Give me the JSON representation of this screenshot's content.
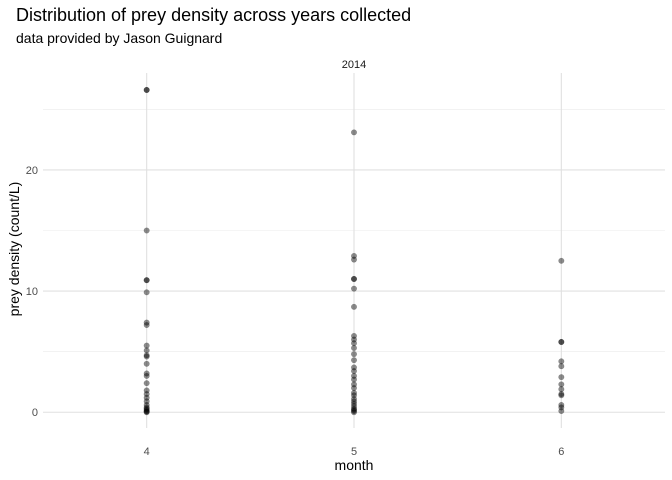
{
  "chart_data": {
    "type": "scatter",
    "title": "Distribution of prey density across years collected",
    "subtitle": "data provided by Jason Guignard",
    "facet_label": "2014",
    "xlabel": "month",
    "ylabel": "prey density (count/L)",
    "x_ticks": [
      4,
      5,
      6
    ],
    "y_ticks": [
      0,
      10,
      20
    ],
    "xlim": [
      3.5,
      6.5
    ],
    "ylim": [
      -1.3,
      28
    ],
    "grid": true,
    "point_color": "#000000",
    "point_opacity": 0.45,
    "points": [
      {
        "x": 4,
        "y": 26.6
      },
      {
        "x": 4,
        "y": 26.6
      },
      {
        "x": 4,
        "y": 15.0
      },
      {
        "x": 4,
        "y": 10.9
      },
      {
        "x": 4,
        "y": 10.9
      },
      {
        "x": 4,
        "y": 9.9
      },
      {
        "x": 4,
        "y": 7.4
      },
      {
        "x": 4,
        "y": 7.2
      },
      {
        "x": 4,
        "y": 5.5
      },
      {
        "x": 4,
        "y": 5.1
      },
      {
        "x": 4,
        "y": 4.7
      },
      {
        "x": 4,
        "y": 4.6
      },
      {
        "x": 4,
        "y": 4.0
      },
      {
        "x": 4,
        "y": 3.2
      },
      {
        "x": 4,
        "y": 3.0
      },
      {
        "x": 4,
        "y": 2.4
      },
      {
        "x": 4,
        "y": 1.8
      },
      {
        "x": 4,
        "y": 1.5
      },
      {
        "x": 4,
        "y": 1.2
      },
      {
        "x": 4,
        "y": 0.9
      },
      {
        "x": 4,
        "y": 0.6
      },
      {
        "x": 4,
        "y": 0.4
      },
      {
        "x": 4,
        "y": 0.3
      },
      {
        "x": 4,
        "y": 0.2
      },
      {
        "x": 4,
        "y": 0.1
      },
      {
        "x": 4,
        "y": 0.05
      },
      {
        "x": 4,
        "y": 0.0
      },
      {
        "x": 5,
        "y": 23.1
      },
      {
        "x": 5,
        "y": 12.9
      },
      {
        "x": 5,
        "y": 12.6
      },
      {
        "x": 5,
        "y": 11.0
      },
      {
        "x": 5,
        "y": 11.0
      },
      {
        "x": 5,
        "y": 10.2
      },
      {
        "x": 5,
        "y": 8.7
      },
      {
        "x": 5,
        "y": 6.3
      },
      {
        "x": 5,
        "y": 6.0
      },
      {
        "x": 5,
        "y": 5.7
      },
      {
        "x": 5,
        "y": 5.3
      },
      {
        "x": 5,
        "y": 4.8
      },
      {
        "x": 5,
        "y": 4.3
      },
      {
        "x": 5,
        "y": 3.7
      },
      {
        "x": 5,
        "y": 3.4
      },
      {
        "x": 5,
        "y": 3.0
      },
      {
        "x": 5,
        "y": 2.7
      },
      {
        "x": 5,
        "y": 2.3
      },
      {
        "x": 5,
        "y": 2.0
      },
      {
        "x": 5,
        "y": 1.6
      },
      {
        "x": 5,
        "y": 1.4
      },
      {
        "x": 5,
        "y": 1.1
      },
      {
        "x": 5,
        "y": 0.9
      },
      {
        "x": 5,
        "y": 0.7
      },
      {
        "x": 5,
        "y": 0.5
      },
      {
        "x": 5,
        "y": 0.3
      },
      {
        "x": 5,
        "y": 0.2
      },
      {
        "x": 5,
        "y": 0.1
      },
      {
        "x": 5,
        "y": 0.0
      },
      {
        "x": 6,
        "y": 12.5
      },
      {
        "x": 6,
        "y": 5.8
      },
      {
        "x": 6,
        "y": 5.8
      },
      {
        "x": 6,
        "y": 4.2
      },
      {
        "x": 6,
        "y": 3.8
      },
      {
        "x": 6,
        "y": 2.9
      },
      {
        "x": 6,
        "y": 2.3
      },
      {
        "x": 6,
        "y": 1.9
      },
      {
        "x": 6,
        "y": 1.5
      },
      {
        "x": 6,
        "y": 1.4
      },
      {
        "x": 6,
        "y": 0.6
      },
      {
        "x": 6,
        "y": 0.4
      },
      {
        "x": 6,
        "y": 0.1
      }
    ]
  }
}
